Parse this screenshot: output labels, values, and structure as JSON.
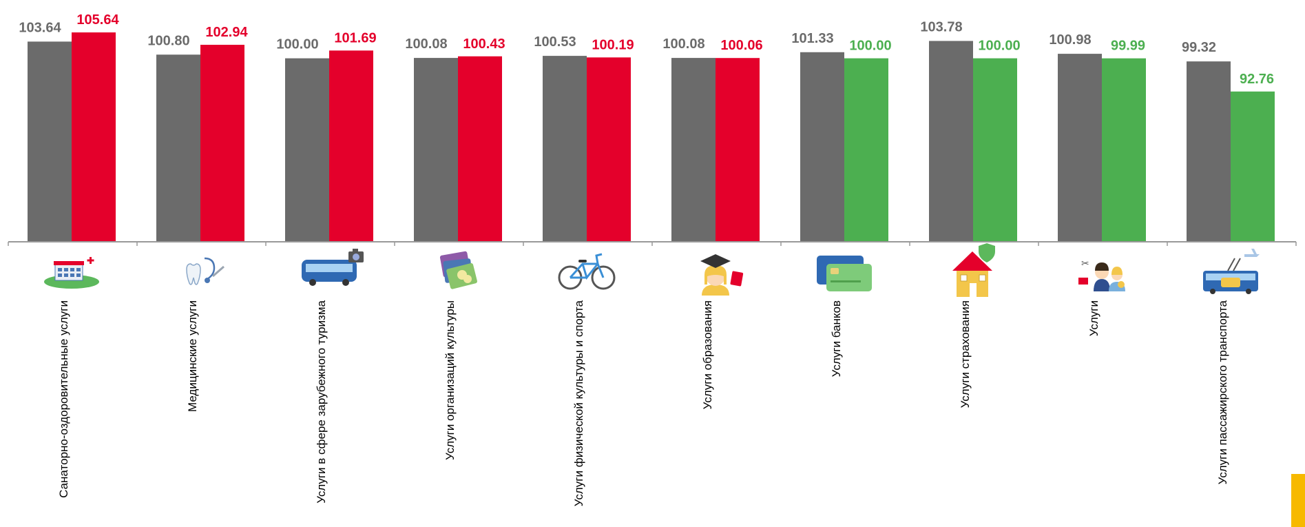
{
  "colors": {
    "prev": "#6b6b6b",
    "up": "#e4002b",
    "down": "#4caf50",
    "prev_label": "#6b6b6b",
    "axis": "#999999",
    "accent_tab": "#f7b900"
  },
  "chart_data": {
    "type": "bar",
    "title": "",
    "xlabel": "",
    "ylabel": "",
    "ylim": [
      60,
      107
    ],
    "grid": false,
    "legend": "none",
    "categories": [
      "Санаторно-оздоровительные услуги",
      "Медицинские услуги",
      "Услуги в сфере зарубежного туризма",
      "Услуги организаций культуры",
      "Услуги физической культуры и спорта",
      "Услуги образования",
      "Услуги банков",
      "Услуги страхования",
      "Услуги",
      "Услуги пассажирского транспорта"
    ],
    "icons": [
      "sanatorium-icon",
      "medical-icon",
      "tour-bus-icon",
      "culture-tickets-icon",
      "bicycle-icon",
      "graduate-icon",
      "bank-card-icon",
      "insured-house-icon",
      "service-workers-icon",
      "public-transport-icon"
    ],
    "series": [
      {
        "values": [
          103.64,
          100.8,
          100.0,
          100.08,
          100.53,
          100.08,
          101.33,
          103.78,
          100.98,
          99.32
        ],
        "labels": [
          "103.64",
          "100.80",
          "100.00",
          "100.08",
          "100.53",
          "100.08",
          "101.33",
          "103.78",
          "100.98",
          "99.32"
        ]
      },
      {
        "values": [
          105.64,
          102.94,
          101.69,
          100.43,
          100.19,
          100.06,
          100.0,
          100.0,
          99.99,
          92.76
        ],
        "labels": [
          "105.64",
          "102.94",
          "101.69",
          "100.43",
          "100.19",
          "100.06",
          "100.00",
          "100.00",
          "99.99",
          "92.76"
        ],
        "colors": [
          "up",
          "up",
          "up",
          "up",
          "up",
          "up",
          "down",
          "down",
          "down",
          "down"
        ]
      }
    ]
  }
}
